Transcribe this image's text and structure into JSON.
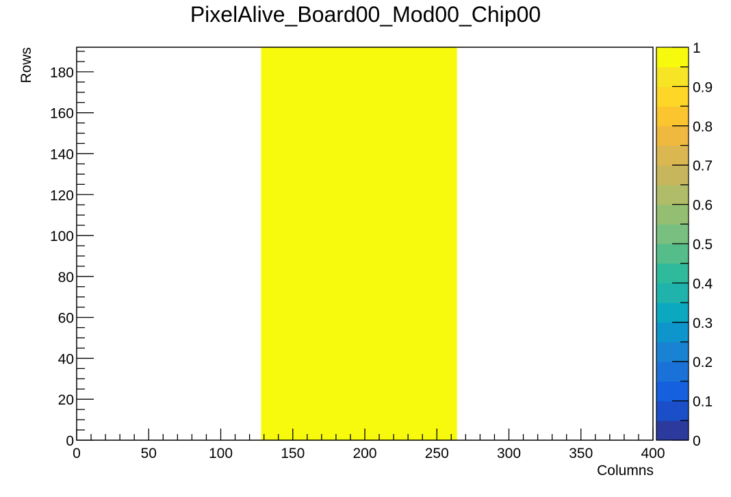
{
  "chart_data": {
    "type": "heatmap",
    "title": "PixelAlive_Board00_Mod00_Chip00",
    "xlabel": "Columns",
    "ylabel": "Rows",
    "xlim": [
      0,
      400
    ],
    "ylim": [
      0,
      192
    ],
    "zlim": [
      0,
      1
    ],
    "x_ticks": [
      0,
      50,
      100,
      150,
      200,
      250,
      300,
      350,
      400
    ],
    "y_ticks": [
      0,
      20,
      40,
      60,
      80,
      100,
      120,
      140,
      160,
      180
    ],
    "z_ticks": [
      "0",
      "0.1",
      "0.2",
      "0.3",
      "0.4",
      "0.5",
      "0.6",
      "0.7",
      "0.8",
      "0.9",
      "1"
    ],
    "cells": [
      {
        "x_range": [
          128,
          264
        ],
        "y_range": [
          0,
          192
        ],
        "value": 1
      }
    ],
    "palette": [
      "#2b3a9c",
      "#1b4fc9",
      "#1460de",
      "#1a72d8",
      "#1a82d2",
      "#0d95cc",
      "#0ba8c0",
      "#1fb3ab",
      "#2fba9c",
      "#55bd8a",
      "#79bf7f",
      "#94bf73",
      "#b0bc68",
      "#c8b65c",
      "#dbb752",
      "#efb83e",
      "#fbc52f",
      "#fdd627",
      "#f7e424",
      "#f8fa0d"
    ]
  }
}
